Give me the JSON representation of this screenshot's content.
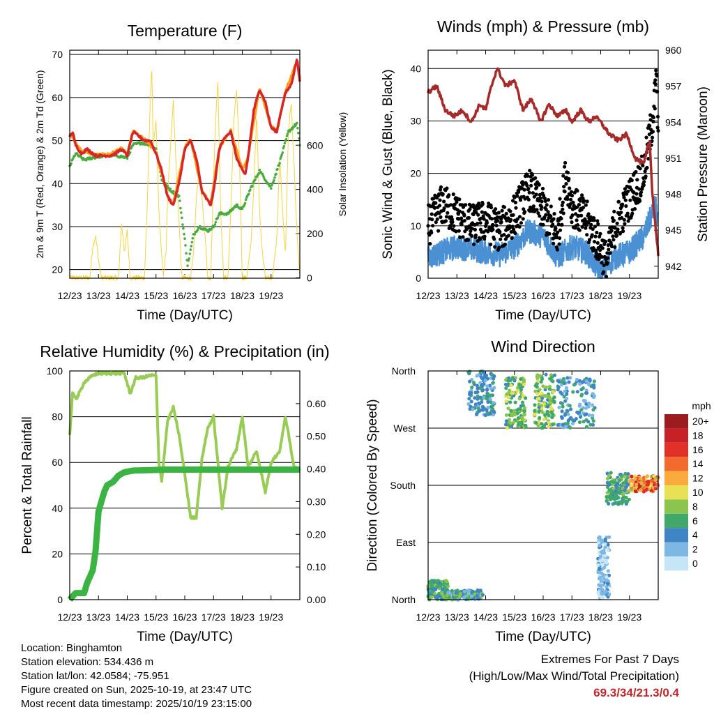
{
  "chart_data": [
    {
      "id": "temperature",
      "type": "line",
      "title": "Temperature (F)",
      "xlabel": "Time (Day/UTC)",
      "ylabel": "2m & 9m T (Red, Orange) & 2m Td (Green)",
      "y2label": "Solar Insolation (Yellow)",
      "x_ticks": [
        "12/23",
        "13/23",
        "14/23",
        "15/23",
        "16/23",
        "17/23",
        "18/23",
        "19/23"
      ],
      "ylim": [
        18,
        71
      ],
      "y_ticks": [
        20,
        30,
        40,
        50,
        60,
        70
      ],
      "y2lim": [
        -2,
        1030
      ],
      "y2_ticks": [
        0,
        200,
        400,
        600
      ],
      "series": [
        {
          "name": "2m T",
          "color": "#d62728",
          "x": [
            0,
            0.1,
            0.2,
            0.4,
            0.6,
            0.9,
            1.1,
            1.4,
            1.6,
            1.8,
            2.0,
            2.2,
            2.4,
            2.6,
            2.8,
            3.0,
            3.2,
            3.4,
            3.6,
            3.8,
            4.0,
            4.2,
            4.4,
            4.6,
            4.9,
            5.0,
            5.2,
            5.4,
            5.6,
            5.8,
            6.0,
            6.1,
            6.2,
            6.4,
            6.6,
            6.8,
            7.0,
            7.2,
            7.35,
            7.5,
            7.7,
            7.9,
            8.0
          ],
          "values": [
            51,
            52,
            49,
            47,
            48,
            46.5,
            46.5,
            46.5,
            47,
            48,
            46.5,
            52,
            51,
            50,
            50,
            47,
            43,
            37,
            35,
            40,
            48,
            50,
            46,
            38,
            35,
            38,
            48,
            51,
            52,
            46,
            43,
            42,
            46,
            57,
            62,
            59,
            53,
            52,
            57,
            61,
            63,
            69,
            64
          ]
        },
        {
          "name": "9m T",
          "color": "#ff9f1c",
          "x": [
            0,
            0.2,
            0.4,
            0.9,
            1.4,
            1.8,
            2.0,
            2.2,
            2.6,
            3.0,
            3.4,
            3.6,
            4.0,
            4.2,
            4.6,
            4.9,
            5.2,
            5.6,
            6.0,
            6.2,
            6.6,
            7.0,
            7.2,
            7.5,
            7.9,
            8.0
          ],
          "values": [
            51.5,
            49.5,
            47.5,
            46.8,
            46.8,
            48.3,
            46.8,
            52.3,
            50.3,
            47.3,
            37.3,
            35.3,
            48.3,
            50.3,
            38.3,
            35.3,
            48.3,
            52.3,
            43.3,
            46.3,
            62.3,
            53.3,
            52.3,
            61.3,
            68.5,
            64.3
          ]
        },
        {
          "name": "2m Td",
          "color": "#4aab3f",
          "x": [
            0,
            0.2,
            0.5,
            0.8,
            1.2,
            1.6,
            2.0,
            2.2,
            2.5,
            2.8,
            3.0,
            3.2,
            3.5,
            3.8,
            4.0,
            4.1,
            4.3,
            4.5,
            4.8,
            5.0,
            5.2,
            5.5,
            5.8,
            6.0,
            6.3,
            6.6,
            6.8,
            7.0,
            7.3,
            7.6,
            7.9,
            8.0
          ],
          "values": [
            44,
            47,
            45.5,
            46,
            46.5,
            46.5,
            46,
            49,
            49.5,
            49,
            48,
            41,
            38.5,
            37,
            27,
            21,
            28,
            30,
            29,
            30,
            33,
            33,
            35,
            34,
            39,
            43,
            41,
            39,
            45,
            52,
            54,
            49
          ]
        },
        {
          "name": "Solar Insolation",
          "axis": "y2",
          "color": "#f5d342",
          "x": [
            0,
            0.7,
            0.8,
            0.9,
            1.0,
            1.1,
            1.7,
            1.8,
            1.9,
            2.0,
            2.1,
            2.3,
            2.6,
            2.7,
            2.8,
            2.85,
            2.9,
            3.0,
            3.1,
            3.25,
            3.35,
            3.4,
            3.5,
            3.6,
            3.7,
            3.8,
            3.9,
            4.05,
            4.2,
            4.3,
            4.4,
            4.5,
            4.7,
            4.8,
            4.9,
            4.95,
            5.05,
            5.15,
            5.25,
            5.35,
            5.5,
            5.6,
            5.7,
            5.8,
            5.9,
            6.0,
            6.15,
            6.3,
            6.4,
            6.5,
            6.6,
            6.7,
            6.8,
            7.05,
            7.2,
            7.3,
            7.4,
            7.5,
            7.6,
            7.7,
            7.8,
            7.9,
            8.0
          ],
          "values": [
            0,
            0,
            140,
            190,
            80,
            0,
            0,
            250,
            120,
            210,
            0,
            0,
            0,
            350,
            800,
            960,
            600,
            700,
            300,
            0,
            120,
            350,
            600,
            800,
            500,
            250,
            0,
            0,
            0,
            100,
            350,
            500,
            200,
            0,
            0,
            220,
            650,
            900,
            300,
            0,
            0,
            300,
            700,
            850,
            550,
            0,
            0,
            150,
            400,
            750,
            300,
            120,
            0,
            0,
            180,
            550,
            300,
            100,
            650,
            800,
            500,
            200,
            0
          ]
        }
      ]
    },
    {
      "id": "winds",
      "type": "scatter",
      "title": "Winds (mph) & Pressure (mb)",
      "xlabel": "Time (Day/UTC)",
      "ylabel": "Sonic Wind & Gust (Blue, Black)",
      "y2label": "Station Pressure (Maroon)",
      "x_ticks": [
        "12/23",
        "13/23",
        "14/23",
        "15/23",
        "16/23",
        "17/23",
        "18/23",
        "19/23"
      ],
      "ylim": [
        0,
        43.5
      ],
      "y_ticks": [
        0,
        10,
        20,
        30,
        40
      ],
      "y2lim": [
        941,
        960
      ],
      "y2_ticks": [
        942,
        945,
        948,
        951,
        954,
        957,
        960
      ],
      "series": [
        {
          "name": "Sonic Wind",
          "color": "#4a90d2",
          "x": [
            0,
            1,
            2,
            2.5,
            3,
            3.5,
            4,
            4.5,
            5,
            5.5,
            6,
            6.5,
            7,
            7.5,
            7.9,
            8
          ],
          "values": [
            4,
            6,
            5,
            4.5,
            6,
            9,
            8,
            4,
            6,
            5,
            1,
            4,
            5,
            8,
            14,
            10
          ]
        },
        {
          "name": "Gust",
          "color": "#000000",
          "x": [
            0,
            0.5,
            1,
            1.5,
            2,
            2.5,
            3,
            3.5,
            4,
            4.5,
            4.8,
            5,
            5.5,
            6,
            6.2,
            6.5,
            7,
            7.5,
            7.8,
            7.95,
            8
          ],
          "values": [
            10,
            14,
            12,
            10,
            11,
            9,
            12,
            17,
            13,
            8,
            20,
            14,
            11,
            6,
            3,
            10,
            15,
            20,
            30,
            38,
            25
          ]
        },
        {
          "name": "Station Pressure",
          "axis": "y2",
          "color": "#a52a2a",
          "x": [
            0,
            0.3,
            0.6,
            0.9,
            1.2,
            1.5,
            1.8,
            2.0,
            2.2,
            2.4,
            2.7,
            3.0,
            3.3,
            3.6,
            3.9,
            4.2,
            4.5,
            4.8,
            5.0,
            5.3,
            5.6,
            5.8,
            6.0,
            6.3,
            6.6,
            6.9,
            7.2,
            7.5,
            7.7,
            7.8,
            8.0
          ],
          "values": [
            956.5,
            957,
            955,
            954.5,
            955,
            954,
            955.5,
            955,
            957,
            958.5,
            957,
            957.5,
            955,
            956,
            954,
            955.5,
            954.5,
            955,
            954,
            955,
            954,
            954.5,
            954,
            953,
            952.5,
            953,
            951,
            950.5,
            952.5,
            948,
            943
          ]
        }
      ]
    },
    {
      "id": "humidity",
      "type": "line",
      "title": "Relative Humidity (%) & Precipitation (in)",
      "xlabel": "Time (Day/UTC)",
      "ylabel": "Percent & Total Rainfall",
      "x_ticks": [
        "12/23",
        "13/23",
        "14/23",
        "15/23",
        "16/23",
        "17/23",
        "18/23",
        "19/23"
      ],
      "ylim": [
        0,
        100
      ],
      "y_ticks": [
        0,
        20,
        40,
        60,
        80,
        100
      ],
      "y2lim": [
        0,
        0.7
      ],
      "y2_ticks": [
        "0.00",
        "0.10",
        "0.20",
        "0.30",
        "0.40",
        "0.50",
        "0.60"
      ],
      "series": [
        {
          "name": "Relative Humidity",
          "color": "#99cc55",
          "x": [
            0,
            0.1,
            0.25,
            0.5,
            0.8,
            1.0,
            1.5,
            1.9,
            2.1,
            2.3,
            2.5,
            2.8,
            3.0,
            3.1,
            3.2,
            3.4,
            3.6,
            3.8,
            4.0,
            4.2,
            4.4,
            4.6,
            4.8,
            5.0,
            5.3,
            5.5,
            5.8,
            6.0,
            6.2,
            6.5,
            6.8,
            7.0,
            7.3,
            7.5,
            7.8,
            8.0
          ],
          "values": [
            72,
            90,
            88,
            95,
            98,
            99,
            99,
            99,
            90,
            97,
            97,
            98,
            98,
            60,
            52,
            78,
            84,
            72,
            55,
            36,
            36,
            62,
            75,
            80,
            40,
            58,
            66,
            80,
            58,
            65,
            47,
            60,
            65,
            80,
            58,
            57
          ]
        },
        {
          "name": "Total Rainfall",
          "axis": "y2",
          "color": "#3cb443",
          "x": [
            0,
            0.2,
            0.5,
            0.6,
            0.8,
            0.9,
            1.0,
            1.1,
            1.2,
            1.3,
            1.5,
            1.7,
            1.9,
            2.2,
            2.6,
            3.0,
            3.3,
            8.0
          ],
          "values": [
            0,
            0.02,
            0.02,
            0.05,
            0.09,
            0.15,
            0.27,
            0.3,
            0.33,
            0.35,
            0.36,
            0.38,
            0.39,
            0.395,
            0.396,
            0.397,
            0.398,
            0.398
          ]
        }
      ]
    },
    {
      "id": "wind_direction",
      "type": "scatter",
      "title": "Wind Direction",
      "xlabel": "Time (Day/UTC)",
      "ylabel": "Direction (Colored By Speed)",
      "x_ticks": [
        "12/23",
        "13/23",
        "14/23",
        "15/23",
        "16/23",
        "17/23",
        "18/23",
        "19/23"
      ],
      "y_ticks": [
        "North",
        "East",
        "South",
        "West",
        "North"
      ],
      "ylim": [
        0,
        360
      ],
      "legend_title": "mph",
      "legend_labels": [
        "20+",
        "18",
        "16",
        "14",
        "12",
        "10",
        "8",
        "6",
        "4",
        "2",
        "0"
      ],
      "legend_colors": [
        "#9b1b1e",
        "#c62127",
        "#e03028",
        "#f26a2e",
        "#fbab3e",
        "#e8e055",
        "#8cc450",
        "#3fa86a",
        "#3f84c4",
        "#7db7e4",
        "#c6e6f8"
      ],
      "clusters": [
        {
          "x": [
            0,
            0.7
          ],
          "y": [
            0,
            30
          ],
          "speed": "4-8"
        },
        {
          "x": [
            0.6,
            1.9
          ],
          "y": [
            0,
            15
          ],
          "speed": "2-8"
        },
        {
          "x": [
            1.4,
            2.3
          ],
          "y": [
            290,
            360
          ],
          "speed": "2-6"
        },
        {
          "x": [
            2.7,
            3.4
          ],
          "y": [
            270,
            350
          ],
          "speed": "4-10"
        },
        {
          "x": [
            3.7,
            4.4
          ],
          "y": [
            270,
            355
          ],
          "speed": "4-10"
        },
        {
          "x": [
            4.5,
            5.8
          ],
          "y": [
            270,
            350
          ],
          "speed": "2-6"
        },
        {
          "x": [
            5.9,
            6.3
          ],
          "y": [
            0,
            100
          ],
          "speed": "0-4"
        },
        {
          "x": [
            6.2,
            7.0
          ],
          "y": [
            150,
            200
          ],
          "speed": "4-8"
        },
        {
          "x": [
            7.0,
            8.0
          ],
          "y": [
            170,
            195
          ],
          "speed": "8-18"
        }
      ]
    }
  ],
  "info": {
    "location": "Location: Binghamton",
    "elevation": "Station elevation: 534.436 m",
    "latlon": "Station lat/lon: 42.0584; -75.951",
    "created": "Figure created on Sun, 2025-10-19, at 23:47 UTC",
    "recent": "Most recent data timestamp: 2025/10/19 23:15:00"
  },
  "extremes": {
    "line1": "Extremes For Past 7 Days",
    "line2": "(High/Low/Max Wind/Total Precipitation)",
    "values": "69.3/34/21.3/0.4",
    "color": "#c0272d"
  }
}
